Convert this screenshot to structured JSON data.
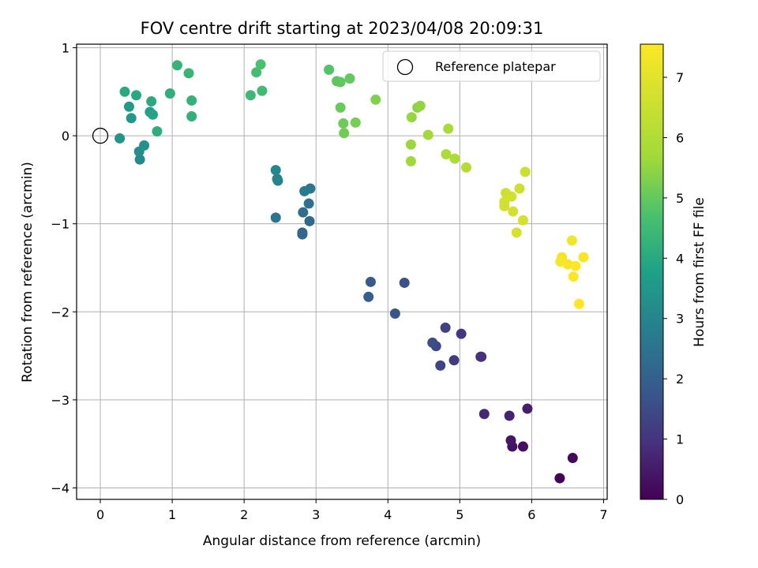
{
  "chart_data": {
    "type": "scatter",
    "title": "FOV centre drift starting at 2023/04/08 20:09:31",
    "xlabel": "Angular distance from reference (arcmin)",
    "ylabel": "Rotation from reference (arcmin)",
    "xlim": [
      -0.33,
      7.05
    ],
    "ylim": [
      -4.13,
      1.04
    ],
    "xticks": [
      0,
      1,
      2,
      3,
      4,
      5,
      6,
      7
    ],
    "yticks": [
      -4,
      -3,
      -2,
      -1,
      0,
      1
    ],
    "grid": true,
    "legend": {
      "placement": "top-right",
      "entries": [
        "Reference platepar"
      ]
    },
    "reference_point": {
      "x": 0,
      "y": 0
    },
    "colorbar": {
      "label": "Hours from first FF file",
      "colormap": "viridis",
      "range": [
        0,
        7.55
      ],
      "ticks": [
        0,
        1,
        2,
        3,
        4,
        5,
        6,
        7
      ]
    },
    "points": [
      {
        "x": 6.39,
        "y": -3.89,
        "hours": 0.05
      },
      {
        "x": 6.57,
        "y": -3.66,
        "hours": 0.15
      },
      {
        "x": 5.88,
        "y": -3.53,
        "hours": 0.25
      },
      {
        "x": 5.73,
        "y": -3.53,
        "hours": 0.35
      },
      {
        "x": 5.71,
        "y": -3.46,
        "hours": 0.45
      },
      {
        "x": 5.94,
        "y": -3.1,
        "hours": 0.55
      },
      {
        "x": 5.69,
        "y": -3.18,
        "hours": 0.65
      },
      {
        "x": 5.34,
        "y": -3.16,
        "hours": 0.75
      },
      {
        "x": 5.3,
        "y": -2.51,
        "hours": 0.85
      },
      {
        "x": 5.29,
        "y": -2.51,
        "hours": 0.95
      },
      {
        "x": 5.02,
        "y": -2.25,
        "hours": 1.05
      },
      {
        "x": 4.92,
        "y": -2.55,
        "hours": 1.15
      },
      {
        "x": 4.8,
        "y": -2.18,
        "hours": 1.25
      },
      {
        "x": 4.73,
        "y": -2.61,
        "hours": 1.35
      },
      {
        "x": 4.67,
        "y": -2.39,
        "hours": 1.45
      },
      {
        "x": 4.62,
        "y": -2.35,
        "hours": 1.55
      },
      {
        "x": 4.23,
        "y": -1.67,
        "hours": 1.65
      },
      {
        "x": 4.1,
        "y": -2.02,
        "hours": 1.75
      },
      {
        "x": 3.76,
        "y": -1.66,
        "hours": 1.85
      },
      {
        "x": 3.73,
        "y": -1.83,
        "hours": 1.95
      },
      {
        "x": 2.81,
        "y": -1.1,
        "hours": 2.05
      },
      {
        "x": 2.81,
        "y": -1.12,
        "hours": 2.15
      },
      {
        "x": 2.91,
        "y": -0.97,
        "hours": 2.25
      },
      {
        "x": 2.82,
        "y": -0.87,
        "hours": 2.35
      },
      {
        "x": 2.9,
        "y": -0.77,
        "hours": 2.45
      },
      {
        "x": 2.44,
        "y": -0.93,
        "hours": 2.55
      },
      {
        "x": 2.92,
        "y": -0.6,
        "hours": 2.65
      },
      {
        "x": 2.84,
        "y": -0.63,
        "hours": 2.75
      },
      {
        "x": 2.47,
        "y": -0.51,
        "hours": 2.85
      },
      {
        "x": 2.46,
        "y": -0.49,
        "hours": 2.95
      },
      {
        "x": 2.44,
        "y": -0.39,
        "hours": 3.05
      },
      {
        "x": 0.55,
        "y": -0.27,
        "hours": 3.15
      },
      {
        "x": 0.54,
        "y": -0.18,
        "hours": 3.25
      },
      {
        "x": 0.61,
        "y": -0.11,
        "hours": 3.35
      },
      {
        "x": 0.27,
        "y": -0.03,
        "hours": 3.45
      },
      {
        "x": 0.43,
        "y": 0.2,
        "hours": 3.55
      },
      {
        "x": 0.4,
        "y": 0.33,
        "hours": 3.65
      },
      {
        "x": 0.69,
        "y": 0.27,
        "hours": 3.75
      },
      {
        "x": 0.73,
        "y": 0.24,
        "hours": 3.85
      },
      {
        "x": 0.5,
        "y": 0.46,
        "hours": 3.95
      },
      {
        "x": 0.34,
        "y": 0.5,
        "hours": 4.0
      },
      {
        "x": 0.71,
        "y": 0.39,
        "hours": 4.05
      },
      {
        "x": 0.79,
        "y": 0.05,
        "hours": 4.1
      },
      {
        "x": 0.97,
        "y": 0.48,
        "hours": 4.15
      },
      {
        "x": 1.27,
        "y": 0.22,
        "hours": 4.2
      },
      {
        "x": 1.27,
        "y": 0.4,
        "hours": 4.25
      },
      {
        "x": 1.07,
        "y": 0.8,
        "hours": 4.3
      },
      {
        "x": 1.23,
        "y": 0.71,
        "hours": 4.35
      },
      {
        "x": 2.09,
        "y": 0.46,
        "hours": 4.45
      },
      {
        "x": 2.25,
        "y": 0.51,
        "hours": 4.55
      },
      {
        "x": 2.17,
        "y": 0.72,
        "hours": 4.6
      },
      {
        "x": 2.23,
        "y": 0.81,
        "hours": 4.7
      },
      {
        "x": 3.18,
        "y": 0.75,
        "hours": 4.8
      },
      {
        "x": 3.29,
        "y": 0.62,
        "hours": 4.9
      },
      {
        "x": 3.34,
        "y": 0.61,
        "hours": 4.95
      },
      {
        "x": 3.47,
        "y": 0.65,
        "hours": 5.0
      },
      {
        "x": 3.34,
        "y": 0.32,
        "hours": 5.05
      },
      {
        "x": 3.38,
        "y": 0.14,
        "hours": 5.1
      },
      {
        "x": 3.39,
        "y": 0.03,
        "hours": 5.15
      },
      {
        "x": 3.55,
        "y": 0.15,
        "hours": 5.2
      },
      {
        "x": 3.83,
        "y": 0.41,
        "hours": 5.3
      },
      {
        "x": 4.41,
        "y": 0.32,
        "hours": 5.45
      },
      {
        "x": 4.45,
        "y": 0.34,
        "hours": 5.5
      },
      {
        "x": 4.33,
        "y": 0.21,
        "hours": 5.55
      },
      {
        "x": 4.32,
        "y": -0.1,
        "hours": 5.6
      },
      {
        "x": 4.32,
        "y": -0.29,
        "hours": 5.65
      },
      {
        "x": 4.56,
        "y": 0.01,
        "hours": 5.7
      },
      {
        "x": 4.84,
        "y": 0.08,
        "hours": 5.85
      },
      {
        "x": 4.81,
        "y": -0.21,
        "hours": 5.9
      },
      {
        "x": 4.93,
        "y": -0.26,
        "hours": 5.95
      },
      {
        "x": 5.09,
        "y": -0.36,
        "hours": 6.05
      },
      {
        "x": 5.91,
        "y": -0.41,
        "hours": 6.5
      },
      {
        "x": 5.83,
        "y": -0.6,
        "hours": 6.55
      },
      {
        "x": 5.64,
        "y": -0.65,
        "hours": 6.6
      },
      {
        "x": 5.72,
        "y": -0.69,
        "hours": 6.62
      },
      {
        "x": 5.62,
        "y": -0.75,
        "hours": 6.65
      },
      {
        "x": 5.62,
        "y": -0.8,
        "hours": 6.68
      },
      {
        "x": 5.74,
        "y": -0.86,
        "hours": 6.7
      },
      {
        "x": 5.88,
        "y": -0.96,
        "hours": 6.75
      },
      {
        "x": 5.79,
        "y": -1.1,
        "hours": 6.8
      },
      {
        "x": 6.56,
        "y": -1.19,
        "hours": 7.3
      },
      {
        "x": 6.42,
        "y": -1.38,
        "hours": 7.35
      },
      {
        "x": 6.4,
        "y": -1.43,
        "hours": 7.4
      },
      {
        "x": 6.72,
        "y": -1.38,
        "hours": 7.42
      },
      {
        "x": 6.5,
        "y": -1.46,
        "hours": 7.45
      },
      {
        "x": 6.61,
        "y": -1.48,
        "hours": 7.48
      },
      {
        "x": 6.58,
        "y": -1.6,
        "hours": 7.5
      },
      {
        "x": 6.66,
        "y": -1.91,
        "hours": 7.55
      }
    ]
  }
}
